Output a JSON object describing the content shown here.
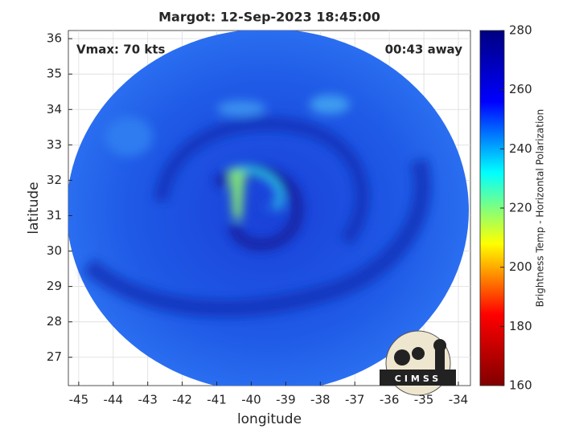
{
  "chart_data": {
    "type": "image",
    "title": "Margot: 12-Sep-2023 18:45:00",
    "annotations": [
      "Vmax: 70 kts",
      "00:43 away"
    ],
    "x_label": "longitude",
    "y_label": "latitude",
    "xlim": [
      -45.3,
      -33.65
    ],
    "ylim": [
      26.2,
      36.23
    ],
    "xticks": [
      -45,
      -44,
      -43,
      -42,
      -41,
      -40,
      -39,
      -38,
      -37,
      -36,
      -35,
      -34
    ],
    "yticks": [
      27,
      28,
      29,
      30,
      31,
      32,
      33,
      34,
      35,
      36
    ],
    "grid": true,
    "colorbar": {
      "label": "Brightness Temp - Horizontal Polarization",
      "colormap": "jet",
      "lim": [
        160,
        280
      ],
      "ticks": [
        160,
        180,
        200,
        220,
        240,
        260,
        280
      ]
    },
    "logo": "CIMSS"
  }
}
